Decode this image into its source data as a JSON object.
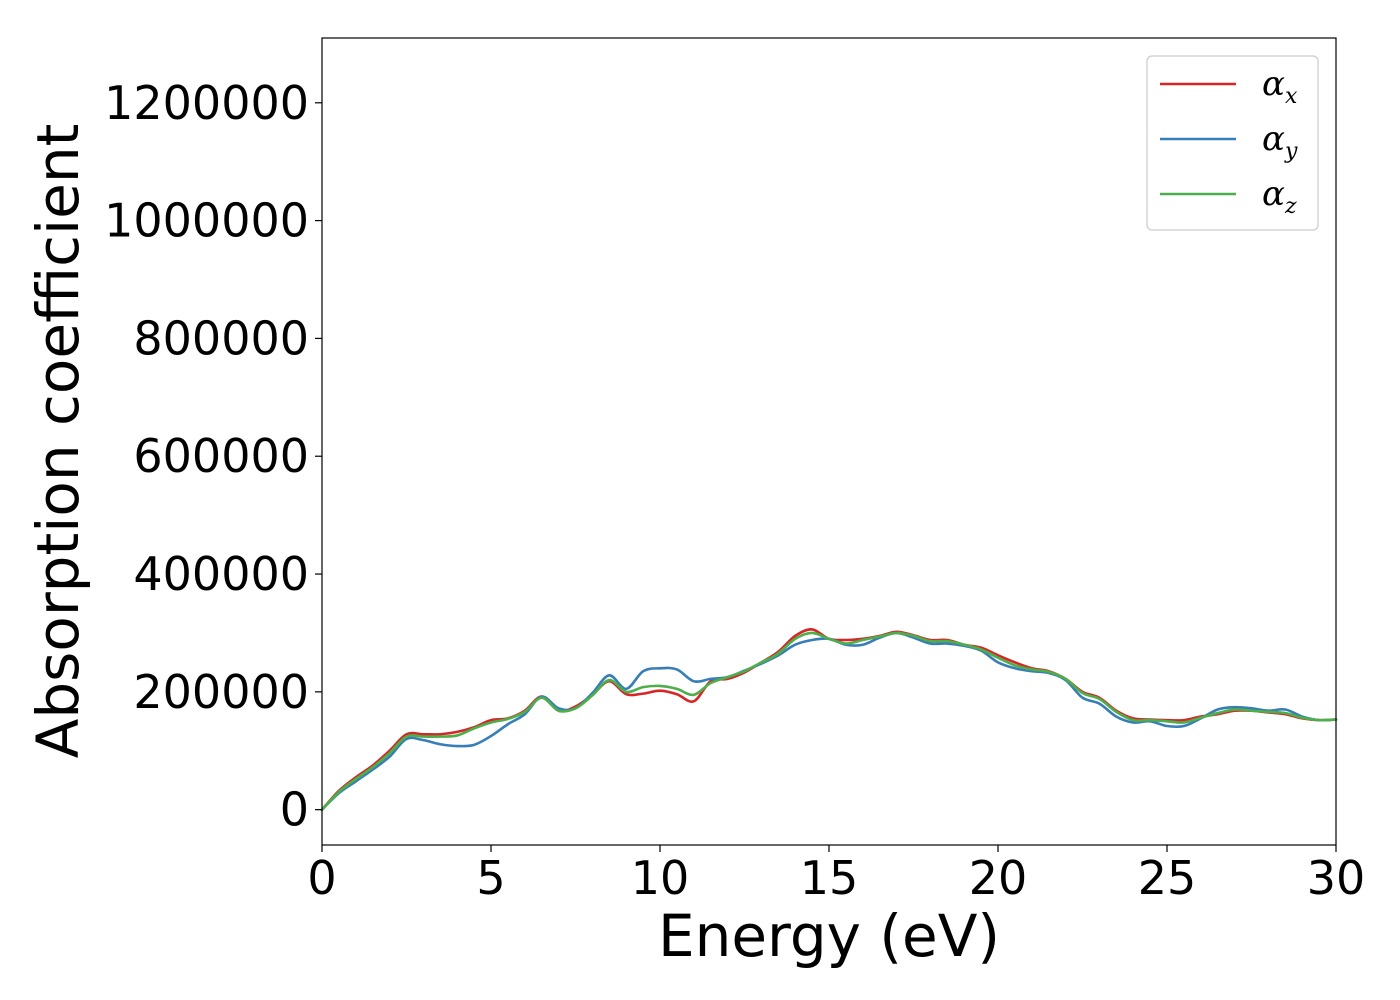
{
  "chart_data": {
    "type": "line",
    "xlabel": "Energy (eV)",
    "ylabel": "Absorption coefficient",
    "xlim": [
      0,
      30
    ],
    "ylim": [
      -60000,
      1310000
    ],
    "xticks": [
      0,
      5,
      10,
      15,
      20,
      25,
      30
    ],
    "yticks": [
      0,
      200000,
      400000,
      600000,
      800000,
      1000000,
      1200000
    ],
    "xtick_labels": [
      "0",
      "5",
      "10",
      "15",
      "20",
      "25",
      "30"
    ],
    "ytick_labels": [
      "0",
      "200000",
      "400000",
      "600000",
      "800000",
      "1000000",
      "1200000"
    ],
    "grid": false,
    "legend_position": "top-right",
    "x": [
      0,
      0.5,
      1,
      1.5,
      2,
      2.5,
      3,
      3.5,
      4,
      4.5,
      5,
      5.5,
      6,
      6.5,
      7,
      7.5,
      8,
      8.5,
      9,
      9.5,
      10,
      10.5,
      11,
      11.5,
      12,
      12.5,
      13,
      13.5,
      14,
      14.5,
      15,
      15.5,
      16,
      16.5,
      17,
      17.5,
      18,
      18.5,
      19,
      19.5,
      20,
      20.5,
      21,
      21.5,
      22,
      22.5,
      23,
      23.5,
      24,
      24.5,
      25,
      25.5,
      26,
      26.5,
      27,
      27.5,
      28,
      28.5,
      29,
      29.5,
      30
    ],
    "series": [
      {
        "name": "α_x",
        "label_main": "α",
        "label_sub": "x",
        "color": "#d62728",
        "values": [
          0,
          32000,
          55000,
          75000,
          100000,
          128000,
          128000,
          128000,
          132000,
          140000,
          152000,
          155000,
          168000,
          192000,
          168000,
          175000,
          195000,
          218000,
          196000,
          197000,
          202000,
          196000,
          184000,
          218000,
          222000,
          233000,
          250000,
          268000,
          295000,
          306000,
          290000,
          288000,
          290000,
          295000,
          302000,
          296000,
          288000,
          288000,
          280000,
          275000,
          262000,
          250000,
          240000,
          235000,
          222000,
          200000,
          190000,
          168000,
          155000,
          153000,
          152000,
          152000,
          158000,
          162000,
          168000,
          168000,
          165000,
          162000,
          155000,
          152000,
          153000
        ]
      },
      {
        "name": "α_y",
        "label_main": "α",
        "label_sub": "y",
        "color": "#377eb8",
        "values": [
          0,
          28000,
          48000,
          68000,
          90000,
          120000,
          118000,
          111000,
          108000,
          110000,
          125000,
          145000,
          162000,
          192000,
          172000,
          172000,
          198000,
          228000,
          205000,
          235000,
          240000,
          238000,
          218000,
          222000,
          225000,
          236000,
          248000,
          262000,
          280000,
          288000,
          290000,
          280000,
          280000,
          292000,
          300000,
          292000,
          282000,
          282000,
          278000,
          270000,
          250000,
          240000,
          235000,
          232000,
          220000,
          190000,
          180000,
          158000,
          148000,
          150000,
          142000,
          142000,
          155000,
          170000,
          174000,
          172000,
          168000,
          170000,
          158000,
          152000,
          153000
        ]
      },
      {
        "name": "α_z",
        "label_main": "α",
        "label_sub": "z",
        "color": "#4daf4a",
        "values": [
          0,
          30000,
          52000,
          72000,
          96000,
          124000,
          124000,
          124000,
          126000,
          138000,
          148000,
          154000,
          166000,
          190000,
          168000,
          172000,
          194000,
          220000,
          200000,
          208000,
          210000,
          205000,
          195000,
          215000,
          225000,
          235000,
          250000,
          265000,
          290000,
          300000,
          290000,
          282000,
          288000,
          294000,
          300000,
          295000,
          286000,
          286000,
          280000,
          272000,
          258000,
          245000,
          238000,
          234000,
          222000,
          198000,
          188000,
          166000,
          152000,
          152000,
          150000,
          148000,
          156000,
          164000,
          170000,
          168000,
          166000,
          164000,
          156000,
          152000,
          153000
        ]
      }
    ]
  }
}
